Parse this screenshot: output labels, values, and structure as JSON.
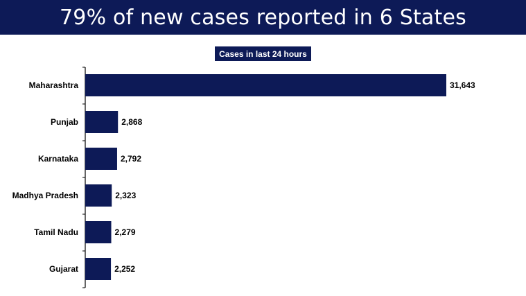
{
  "header": {
    "title": "79% of new cases reported in 6 States"
  },
  "chart_data": {
    "type": "bar",
    "orientation": "horizontal",
    "title": "Cases in last 24 hours",
    "categories": [
      "Maharashtra",
      "Punjab",
      "Karnataka",
      "Madhya Pradesh",
      "Tamil Nadu",
      "Gujarat"
    ],
    "values": [
      31643,
      2868,
      2792,
      2323,
      2279,
      2252
    ],
    "value_labels": [
      "31,643",
      "2,868",
      "2,792",
      "2,323",
      "2,279",
      "2,252"
    ],
    "xlim": [
      0,
      31643
    ],
    "grid": false,
    "legend": "none",
    "colors": {
      "bar": "#0d1a57",
      "banner": "#0d1a57"
    }
  }
}
